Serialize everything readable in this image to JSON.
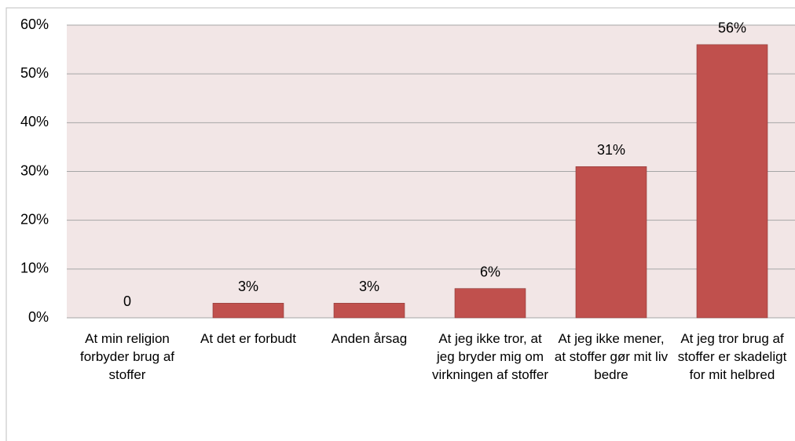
{
  "chart_data": {
    "type": "bar",
    "categories": [
      "At min religion forbyder brug af stoffer",
      "At det er forbudt",
      "Anden årsag",
      "At jeg ikke tror, at jeg bryder mig om virkningen af stoffer",
      "At jeg ikke mener, at stoffer gør mit liv bedre",
      "At jeg tror brug af stoffer er skadeligt for mit helbred"
    ],
    "values": [
      0,
      3,
      3,
      6,
      31,
      56
    ],
    "value_labels": [
      "0",
      "3%",
      "3%",
      "6%",
      "31%",
      "56%"
    ],
    "color": "#c0504d",
    "ylim": [
      0,
      60
    ],
    "yticks": [
      {
        "value": 0,
        "label": "0%"
      },
      {
        "value": 10,
        "label": "10%"
      },
      {
        "value": 20,
        "label": "20%"
      },
      {
        "value": 30,
        "label": "30%"
      },
      {
        "value": 40,
        "label": "40%"
      },
      {
        "value": 50,
        "label": "50%"
      },
      {
        "value": 60,
        "label": "60%"
      }
    ],
    "grid": true
  }
}
